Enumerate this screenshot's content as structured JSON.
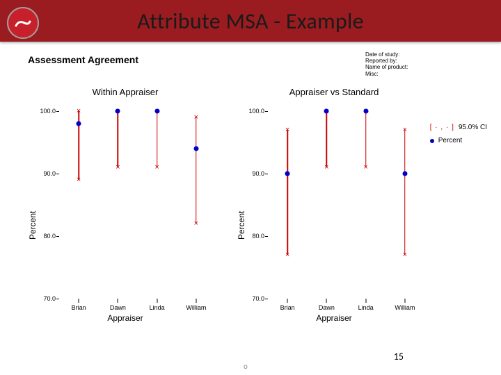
{
  "header": {
    "title": "Attribute MSA - Example",
    "title_color": "#1a1a1a",
    "bar_color": "#9a1c20",
    "logo_color": "#c8202a"
  },
  "figure": {
    "assessment_title": "Assessment Agreement",
    "assessment_title_fontsize": 14,
    "study_info_lines": [
      "Date of study:",
      "Reported by:",
      "Name of product:",
      "Misc:"
    ],
    "study_info_fontsize": 8,
    "legend": {
      "ci_label": "95.0% CI",
      "ci_symbol": "[ · , · ]",
      "percent_label": "Percent"
    },
    "panels": [
      {
        "title": "Within Appraiser",
        "xlabel": "Appraiser",
        "ylabel": "Percent",
        "ylim": [
          70,
          100
        ],
        "yticks": [
          70,
          80,
          90,
          100
        ],
        "categories": [
          "Brian",
          "Dawn",
          "Linda",
          "William"
        ],
        "points": [
          {
            "percent": 98.0,
            "ci_low": 89.0,
            "ci_high": 100.0
          },
          {
            "percent": 100.0,
            "ci_low": 91.0,
            "ci_high": 100.0
          },
          {
            "percent": 100.0,
            "ci_low": 91.0,
            "ci_high": 100.0
          },
          {
            "percent": 94.0,
            "ci_low": 82.0,
            "ci_high": 99.0
          }
        ]
      },
      {
        "title": "Appraiser vs Standard",
        "xlabel": "Appraiser",
        "ylabel": "Percent",
        "ylim": [
          70,
          100
        ],
        "yticks": [
          70,
          80,
          90,
          100
        ],
        "categories": [
          "Brian",
          "Dawn",
          "Linda",
          "William"
        ],
        "points": [
          {
            "percent": 90.0,
            "ci_low": 77.0,
            "ci_high": 97.0
          },
          {
            "percent": 100.0,
            "ci_low": 91.0,
            "ci_high": 100.0
          },
          {
            "percent": 100.0,
            "ci_low": 91.0,
            "ci_high": 100.0
          },
          {
            "percent": 90.0,
            "ci_low": 77.0,
            "ci_high": 97.0
          }
        ]
      }
    ],
    "title_fontsize": 13,
    "axis_label_fontsize": 12,
    "tick_fontsize": 9,
    "ci_color": "#cc0000",
    "point_color": "#0000cc",
    "background_color": "#ffffff"
  },
  "page_number": "15"
}
